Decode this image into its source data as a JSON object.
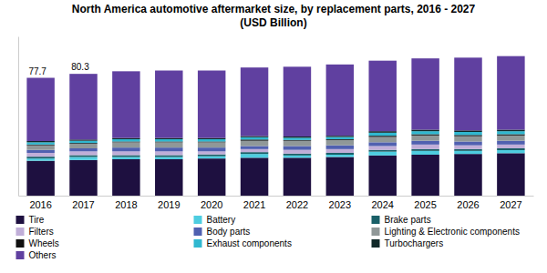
{
  "chart_data": {
    "type": "bar",
    "stacked": true,
    "title": "North America automotive aftermarket size, by replacement parts, 2016 - 2027",
    "subtitle": "(USD Billion)",
    "categories": [
      "2016",
      "2017",
      "2018",
      "2019",
      "2020",
      "2021",
      "2022",
      "2023",
      "2024",
      "2025",
      "2026",
      "2027"
    ],
    "series": [
      {
        "name": "Tire",
        "color": "#1e1040",
        "values": [
          23.0,
          23.5,
          24.0,
          24.0,
          24.5,
          25.0,
          25.0,
          25.5,
          26.5,
          27.0,
          27.5,
          28.0
        ]
      },
      {
        "name": "Battery",
        "color": "#4ecde0",
        "values": [
          1.5,
          2.0,
          1.5,
          1.5,
          1.5,
          2.5,
          1.5,
          1.5,
          2.5,
          2.5,
          2.0,
          2.0
        ]
      },
      {
        "name": "Brake parts",
        "color": "#1a6068",
        "values": [
          1.2,
          1.2,
          1.2,
          1.2,
          1.2,
          1.2,
          1.2,
          1.2,
          1.2,
          1.2,
          1.2,
          1.2
        ]
      },
      {
        "name": "Filters",
        "color": "#c0aed8",
        "values": [
          2.5,
          2.5,
          2.5,
          2.5,
          2.0,
          2.0,
          2.5,
          2.5,
          2.5,
          3.0,
          2.5,
          2.5
        ]
      },
      {
        "name": "Body parts",
        "color": "#5060b0",
        "values": [
          2.0,
          2.0,
          2.5,
          2.5,
          2.5,
          2.0,
          2.5,
          2.5,
          2.5,
          2.5,
          2.5,
          2.5
        ]
      },
      {
        "name": "Lighting & Electronic components",
        "color": "#909898",
        "values": [
          3.0,
          3.0,
          3.5,
          3.5,
          3.5,
          3.5,
          3.5,
          3.5,
          3.5,
          3.5,
          3.5,
          3.5
        ]
      },
      {
        "name": "Wheels",
        "color": "#101010",
        "values": [
          0.5,
          0.5,
          0.5,
          0.5,
          0.5,
          0.8,
          0.5,
          0.5,
          0.8,
          0.8,
          0.8,
          0.8
        ]
      },
      {
        "name": "Exhaust components",
        "color": "#30b8d0",
        "values": [
          1.5,
          1.5,
          1.5,
          1.5,
          1.5,
          1.5,
          1.5,
          1.5,
          2.0,
          2.0,
          2.0,
          2.0
        ]
      },
      {
        "name": "Turbochargers",
        "color": "#102828",
        "values": [
          0.8,
          0.8,
          0.8,
          0.8,
          0.8,
          0.8,
          0.8,
          0.8,
          1.0,
          1.0,
          1.0,
          1.0
        ]
      },
      {
        "name": "Others",
        "color": "#6040a0",
        "values": [
          41.7,
          43.3,
          44.0,
          44.5,
          44.5,
          45.2,
          46.0,
          47.0,
          46.5,
          47.0,
          48.0,
          48.5
        ]
      }
    ],
    "annotations": [
      {
        "category": "2016",
        "text": "77.7"
      },
      {
        "category": "2017",
        "text": "80.3"
      }
    ],
    "ylim": [
      0,
      105
    ],
    "tick_labels": "x",
    "grid": false,
    "legend": "bottom"
  }
}
